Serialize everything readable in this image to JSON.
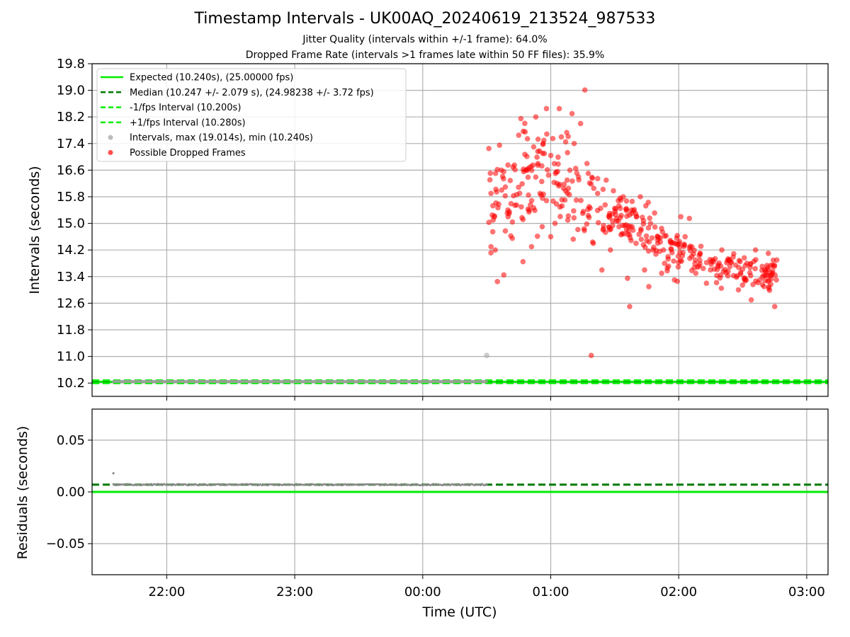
{
  "header": {
    "title": "Timestamp Intervals - UK00AQ_20240619_213524_987533",
    "subtitle1": "Jitter Quality (intervals within +/-1 frame): 64.0%",
    "subtitle2": "Dropped Frame Rate (intervals >1 frames late within 50 FF files): 35.9%"
  },
  "chart_data": [
    {
      "type": "scatter",
      "panel": "intervals",
      "ylabel": "Intervals (seconds)",
      "xlabel": "",
      "xlim": [
        "21:25",
        "03:10"
      ],
      "ylim": [
        9.8,
        19.8
      ],
      "y_ticks": [
        "10.2",
        "11.0",
        "11.8",
        "12.6",
        "13.4",
        "14.2",
        "15.0",
        "15.8",
        "16.6",
        "17.4",
        "18.2",
        "19.0",
        "19.8"
      ],
      "x_ticks": [
        "22:00",
        "23:00",
        "00:00",
        "01:00",
        "02:00",
        "03:00"
      ],
      "grid": true,
      "legend_position": "top-left",
      "colors": {
        "expected": "#00ee00",
        "median": "#007a00",
        "minus_fps": "#00ee00",
        "plus_fps": "#00ee00",
        "intervals": "#a0a0a0",
        "dropped": "#ff0000"
      },
      "legend": [
        {
          "key": "expected",
          "label": "Expected (10.240s), (25.00000 fps)",
          "style": "solid-line"
        },
        {
          "key": "median",
          "label": "Median (10.247 +/- 2.079 s), (24.98238 +/- 3.72 fps)",
          "style": "dashed-line"
        },
        {
          "key": "minus_fps",
          "label": "-1/fps Interval (10.200s)",
          "style": "dashed-line"
        },
        {
          "key": "plus_fps",
          "label": "+1/fps Interval (10.280s)",
          "style": "dashed-line"
        },
        {
          "key": "intervals",
          "label": "Intervals, max (19.014s), min (10.240s)",
          "style": "marker"
        },
        {
          "key": "dropped",
          "label": "Possible Dropped Frames",
          "style": "marker"
        }
      ],
      "reference_lines": [
        {
          "key": "expected",
          "y": 10.24
        },
        {
          "key": "median",
          "y": 10.247
        },
        {
          "key": "minus_fps",
          "y": 10.2
        },
        {
          "key": "plus_fps",
          "y": 10.28
        }
      ],
      "normal_intervals": {
        "x_start": "21:35",
        "x_end": "00:30",
        "y": 10.247,
        "count": 350
      },
      "series": [
        {
          "name": "Intervals, max (19.014s), min (10.240s)",
          "points": [
            {
              "x": "00:30",
              "y": 11.03
            }
          ]
        },
        {
          "name": "Possible Dropped Frames",
          "points": [
            {
              "x": "00:31",
              "y": 17.25
            },
            {
              "x": "00:32",
              "y": 15.9
            },
            {
              "x": "00:32",
              "y": 14.3
            },
            {
              "x": "00:33",
              "y": 15.1
            },
            {
              "x": "00:34",
              "y": 14.2
            },
            {
              "x": "00:35",
              "y": 13.25
            },
            {
              "x": "00:36",
              "y": 17.35
            },
            {
              "x": "00:37",
              "y": 16.0
            },
            {
              "x": "00:38",
              "y": 13.45
            },
            {
              "x": "00:40",
              "y": 15.2
            },
            {
              "x": "00:42",
              "y": 14.55
            },
            {
              "x": "00:43",
              "y": 16.75
            },
            {
              "x": "00:44",
              "y": 15.55
            },
            {
              "x": "00:45",
              "y": 17.65
            },
            {
              "x": "00:46",
              "y": 18.15
            },
            {
              "x": "00:47",
              "y": 13.85
            },
            {
              "x": "00:48",
              "y": 17.75
            },
            {
              "x": "00:49",
              "y": 16.6
            },
            {
              "x": "00:50",
              "y": 15.4
            },
            {
              "x": "00:51",
              "y": 14.3
            },
            {
              "x": "00:52",
              "y": 17.3
            },
            {
              "x": "00:53",
              "y": 18.2
            },
            {
              "x": "00:54",
              "y": 16.8
            },
            {
              "x": "00:55",
              "y": 15.9
            },
            {
              "x": "00:56",
              "y": 14.9
            },
            {
              "x": "00:57",
              "y": 17.1
            },
            {
              "x": "00:58",
              "y": 18.45
            },
            {
              "x": "00:59",
              "y": 16.45
            },
            {
              "x": "01:00",
              "y": 14.6
            },
            {
              "x": "01:01",
              "y": 17.55
            },
            {
              "x": "01:02",
              "y": 15.0
            },
            {
              "x": "01:03",
              "y": 16.2
            },
            {
              "x": "01:04",
              "y": 18.45
            },
            {
              "x": "01:05",
              "y": 17.6
            },
            {
              "x": "01:06",
              "y": 16.05
            },
            {
              "x": "01:07",
              "y": 17.45
            },
            {
              "x": "01:08",
              "y": 15.1
            },
            {
              "x": "01:09",
              "y": 16.6
            },
            {
              "x": "01:10",
              "y": 18.3
            },
            {
              "x": "01:11",
              "y": 17.4
            },
            {
              "x": "01:12",
              "y": 15.7
            },
            {
              "x": "01:13",
              "y": 16.4
            },
            {
              "x": "01:14",
              "y": 18.0
            },
            {
              "x": "01:15",
              "y": 15.3
            },
            {
              "x": "01:16",
              "y": 19.01
            },
            {
              "x": "01:17",
              "y": 16.8
            },
            {
              "x": "01:18",
              "y": 15.5
            },
            {
              "x": "01:19",
              "y": 11.03
            },
            {
              "x": "01:20",
              "y": 14.4
            },
            {
              "x": "01:22",
              "y": 15.9
            },
            {
              "x": "01:24",
              "y": 13.6
            },
            {
              "x": "01:26",
              "y": 16.3
            },
            {
              "x": "01:28",
              "y": 14.2
            },
            {
              "x": "01:30",
              "y": 15.45
            },
            {
              "x": "01:32",
              "y": 14.9
            },
            {
              "x": "01:34",
              "y": 15.8
            },
            {
              "x": "01:36",
              "y": 13.35
            },
            {
              "x": "01:37",
              "y": 12.5
            },
            {
              "x": "01:38",
              "y": 15.3
            },
            {
              "x": "01:40",
              "y": 14.4
            },
            {
              "x": "01:42",
              "y": 15.8
            },
            {
              "x": "01:44",
              "y": 13.6
            },
            {
              "x": "01:46",
              "y": 13.1
            },
            {
              "x": "01:48",
              "y": 14.2
            },
            {
              "x": "01:50",
              "y": 14.6
            },
            {
              "x": "01:52",
              "y": 13.5
            },
            {
              "x": "01:55",
              "y": 14.0
            },
            {
              "x": "01:58",
              "y": 13.3
            },
            {
              "x": "02:01",
              "y": 15.2
            },
            {
              "x": "02:03",
              "y": 14.6
            },
            {
              "x": "02:05",
              "y": 15.15
            },
            {
              "x": "02:08",
              "y": 13.5
            },
            {
              "x": "02:10",
              "y": 14.1
            },
            {
              "x": "02:13",
              "y": 13.2
            },
            {
              "x": "02:16",
              "y": 13.9
            },
            {
              "x": "02:20",
              "y": 13.05
            },
            {
              "x": "02:24",
              "y": 13.7
            },
            {
              "x": "02:28",
              "y": 13.0
            },
            {
              "x": "02:32",
              "y": 13.8
            },
            {
              "x": "02:34",
              "y": 12.7
            },
            {
              "x": "02:36",
              "y": 14.2
            },
            {
              "x": "02:38",
              "y": 13.3
            },
            {
              "x": "02:40",
              "y": 13.1
            },
            {
              "x": "02:42",
              "y": 14.1
            },
            {
              "x": "02:44",
              "y": 13.5
            },
            {
              "x": "02:45",
              "y": 12.5
            },
            {
              "x": "02:46",
              "y": 13.9
            }
          ]
        }
      ]
    },
    {
      "type": "line",
      "panel": "residuals",
      "ylabel": "Residuals (seconds)",
      "xlabel": "Time (UTC)",
      "xlim": [
        "21:25",
        "03:10"
      ],
      "ylim": [
        -0.08,
        0.08
      ],
      "y_ticks": [
        "0.05",
        "0.00",
        "−0.05"
      ],
      "y_tick_values": [
        0.05,
        0.0,
        -0.05
      ],
      "x_ticks": [
        "22:00",
        "23:00",
        "00:00",
        "01:00",
        "02:00",
        "03:00"
      ],
      "grid": true,
      "reference_lines": [
        {
          "key": "expected",
          "y": 0.0,
          "style": "solid"
        },
        {
          "key": "median",
          "y": 0.007,
          "style": "dashed"
        }
      ],
      "series": [
        {
          "name": "",
          "x_start": "21:35",
          "x_end": "00:30",
          "y": 0.007
        },
        {
          "name": "",
          "points": [
            {
              "x": "21:35",
              "y": 0.018
            }
          ]
        }
      ]
    }
  ]
}
